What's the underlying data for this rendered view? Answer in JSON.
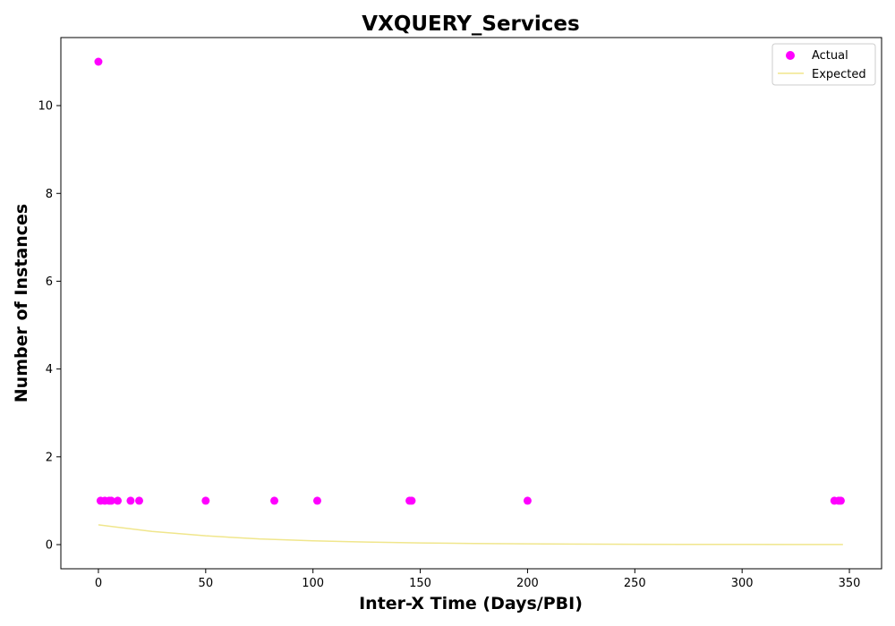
{
  "chart_data": {
    "type": "scatter",
    "title": "VXQUERY_Services",
    "xlabel": "Inter-X Time (Days/PBI)",
    "ylabel": "Number of Instances",
    "xlim": [
      -17.5,
      365
    ],
    "ylim": [
      -0.55,
      11.55
    ],
    "xticks": [
      0,
      50,
      100,
      150,
      200,
      250,
      300,
      350
    ],
    "yticks": [
      0,
      2,
      4,
      6,
      8,
      10
    ],
    "grid": false,
    "legend": {
      "placement": "top-right",
      "entries": [
        "Actual",
        "Expected"
      ]
    },
    "series": [
      {
        "name": "Actual",
        "kind": "scatter",
        "color": "#ff00ff",
        "points": [
          [
            0,
            11
          ],
          [
            1,
            1
          ],
          [
            3,
            1
          ],
          [
            5,
            1
          ],
          [
            6,
            1
          ],
          [
            9,
            1
          ],
          [
            15,
            1
          ],
          [
            19,
            1
          ],
          [
            50,
            1
          ],
          [
            82,
            1
          ],
          [
            102,
            1
          ],
          [
            145,
            1
          ],
          [
            146,
            1
          ],
          [
            200,
            1
          ],
          [
            343,
            1
          ],
          [
            345,
            1
          ],
          [
            346,
            1
          ]
        ]
      },
      {
        "name": "Expected",
        "kind": "line",
        "color": "#f0e68c",
        "points": [
          [
            0,
            0.45
          ],
          [
            25,
            0.3
          ],
          [
            50,
            0.2
          ],
          [
            75,
            0.13
          ],
          [
            100,
            0.087
          ],
          [
            125,
            0.058
          ],
          [
            150,
            0.039
          ],
          [
            175,
            0.026
          ],
          [
            200,
            0.017
          ],
          [
            250,
            0.008
          ],
          [
            300,
            0.004
          ],
          [
            347,
            0.002
          ]
        ]
      }
    ]
  }
}
